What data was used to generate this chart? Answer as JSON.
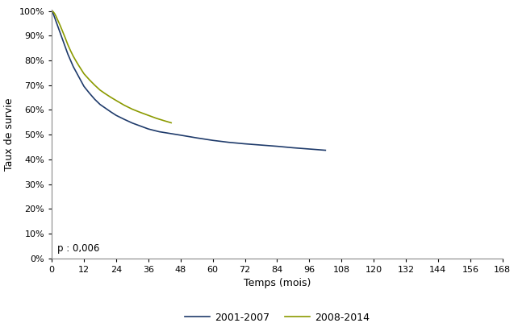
{
  "title": "",
  "xlabel": "Temps (mois)",
  "ylabel": "Taux de survie",
  "xlim": [
    0,
    168
  ],
  "ylim": [
    0,
    1.005
  ],
  "xticks": [
    0,
    12,
    24,
    36,
    48,
    60,
    72,
    84,
    96,
    108,
    120,
    132,
    144,
    156,
    168
  ],
  "yticks": [
    0.0,
    0.1,
    0.2,
    0.3,
    0.4,
    0.5,
    0.6,
    0.7,
    0.8,
    0.9,
    1.0
  ],
  "annotation": "p : 0,006",
  "legend_labels": [
    "2001-2007",
    "2008-2014"
  ],
  "line1_color": "#1F3B6B",
  "line2_color": "#8B9A00",
  "background_color": "#ffffff",
  "curve1_x": [
    0,
    0.5,
    1,
    1.5,
    2,
    3,
    4,
    5,
    6,
    7,
    8,
    9,
    10,
    11,
    12,
    14,
    16,
    18,
    20,
    22,
    24,
    27,
    30,
    33,
    36,
    40,
    44,
    48,
    54,
    60,
    66,
    72,
    78,
    84,
    90,
    96,
    102
  ],
  "curve1_y": [
    1.0,
    0.99,
    0.975,
    0.96,
    0.945,
    0.915,
    0.885,
    0.855,
    0.825,
    0.8,
    0.775,
    0.755,
    0.735,
    0.715,
    0.695,
    0.668,
    0.643,
    0.622,
    0.607,
    0.592,
    0.578,
    0.562,
    0.547,
    0.535,
    0.523,
    0.512,
    0.505,
    0.498,
    0.487,
    0.477,
    0.469,
    0.463,
    0.458,
    0.453,
    0.447,
    0.442,
    0.437
  ],
  "curve2_x": [
    0,
    0.5,
    1,
    1.5,
    2,
    3,
    4,
    5,
    6,
    7,
    8,
    9,
    10,
    11,
    12,
    14,
    16,
    18,
    20,
    22,
    24,
    27,
    30,
    33,
    36,
    39,
    42,
    44.5
  ],
  "curve2_y": [
    1.0,
    0.997,
    0.99,
    0.98,
    0.968,
    0.944,
    0.918,
    0.891,
    0.863,
    0.839,
    0.817,
    0.798,
    0.78,
    0.763,
    0.746,
    0.722,
    0.7,
    0.68,
    0.665,
    0.651,
    0.638,
    0.619,
    0.603,
    0.59,
    0.578,
    0.566,
    0.556,
    0.548
  ]
}
